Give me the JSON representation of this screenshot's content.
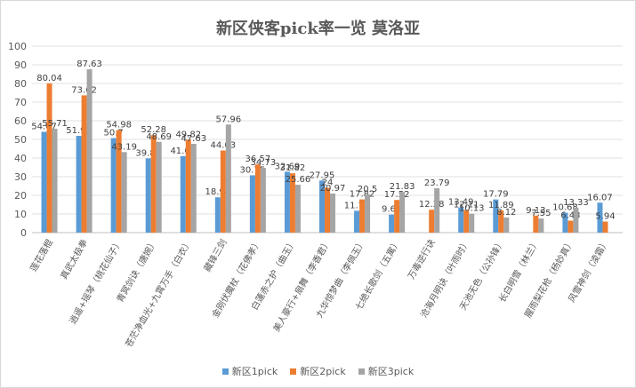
{
  "chart_data": {
    "type": "bar",
    "title": "新区侠客pick率一览 莫洛亚",
    "categories": [
      "莲花落棍",
      "真武太极拳",
      "逍遥+瑶琴（桃花仙子）",
      "青冥剑诀（唐婉）",
      "苍茫净血光+九霄万手（白衣）",
      "藏锋三剑",
      "金刚伏魔杖（花佛孝）",
      "白蓮赤之护（曲玉）",
      "美人豪行+扇舞（李香君）",
      "九华惊梦曲（李佩玉）",
      "七绝长歌剑（五寓）",
      "万毒逆行诀",
      "沧海月明诀（叶雨时）",
      "天池无色（公孙锋）",
      "长白明雪（林兰）",
      "腥雨梨花枪（杨妙真）",
      "风雪神剑（凌霜）"
    ],
    "series": [
      {
        "name": "新区1pick",
        "color": "#5b9bd5",
        "values": [
          54.07,
          51.92,
          50.7,
          39.83,
          41.03,
          18.94,
          30.75,
          32.69,
          27.95,
          11.73,
          9.68,
          null,
          13.49,
          17.79,
          null,
          10.68,
          16.07
        ]
      },
      {
        "name": "新区2pick",
        "color": "#ed7d31",
        "values": [
          80.04,
          73.62,
          54.98,
          52.28,
          49.82,
          44.03,
          36.57,
          31.82,
          24.0,
          17.82,
          17.52,
          12.28,
          12.11,
          11.89,
          9.13,
          6.43,
          5.94
        ]
      },
      {
        "name": "新区3pick",
        "color": "#a5a5a5",
        "values": [
          55.71,
          87.63,
          43.19,
          48.69,
          47.63,
          57.96,
          34.73,
          25.66,
          20.97,
          20.5,
          21.83,
          23.79,
          10.13,
          8.12,
          7.55,
          13.33,
          null
        ]
      }
    ],
    "ylim": [
      0,
      100
    ],
    "yticks": [
      "0",
      "10",
      "20",
      "30",
      "40",
      "50",
      "60",
      "70",
      "80",
      "90",
      "100"
    ],
    "grid": true,
    "legend": "bottom"
  }
}
